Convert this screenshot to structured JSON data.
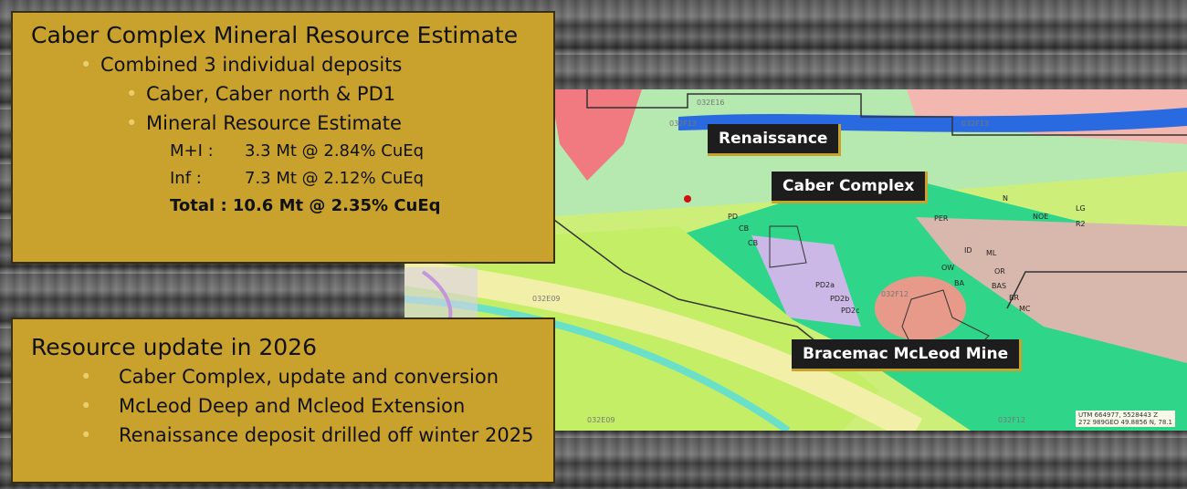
{
  "box1": {
    "title": "Caber Complex Mineral Resource Estimate",
    "bullet1": "Combined 3 individual deposits",
    "sub1": "Caber, Caber north & PD1",
    "sub2": "Mineral Resource Estimate",
    "rows": [
      {
        "k": "M+I :",
        "v": "3.3 Mt @ 2.84% CuEq"
      },
      {
        "k": "Inf :",
        "v": "7.3 Mt @ 2.12% CuEq"
      }
    ],
    "total": "Total : 10.6 Mt @ 2.35% CuEq"
  },
  "box2": {
    "title": "Resource update in 2026",
    "bullets": [
      "Caber Complex,  update and conversion",
      "McLeod Deep and Mcleod Extension",
      "Renaissance deposit drilled off winter 2025"
    ]
  },
  "map": {
    "callouts": [
      "Renaissance",
      "Caber Complex",
      "Bracemac McLeod Mine"
    ],
    "quads": [
      "032E16",
      "032F13",
      "032F13",
      "032E09",
      "032F12",
      "032E09",
      "032F12"
    ],
    "deposits": [
      "PD",
      "CB",
      "CB",
      "PER",
      "N",
      "NOE",
      "LG",
      "R2",
      "ID",
      "ML",
      "OW",
      "OR",
      "BA",
      "BAS",
      "BR",
      "MC",
      "PD2a",
      "PD2b",
      "PD2c"
    ],
    "scale_text": [
      "UTM 664977, 5528443 Z",
      "272 989GEO 49.8856 N, 78.1"
    ]
  },
  "colors": {
    "panel": "#c9a22e",
    "callout": "#1d1d1d",
    "deposit_marker": "#d01010"
  }
}
